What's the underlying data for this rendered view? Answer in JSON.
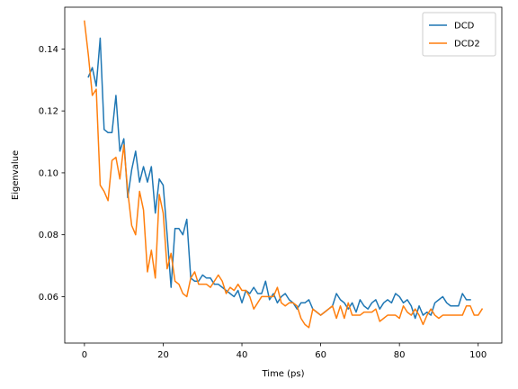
{
  "chart_data": {
    "type": "line",
    "title": "",
    "xlabel": "Time (ps)",
    "ylabel": "Eigenvalue",
    "xlim": [
      -5,
      106
    ],
    "ylim": [
      0.045,
      0.1535
    ],
    "xticks": [
      0,
      20,
      40,
      60,
      80,
      100
    ],
    "yticks": [
      0.06,
      0.08,
      0.1,
      0.12,
      0.14
    ],
    "xtick_labels": [
      "0",
      "20",
      "40",
      "60",
      "80",
      "100"
    ],
    "ytick_labels": [
      "0.06",
      "0.08",
      "0.10",
      "0.12",
      "0.14"
    ],
    "grid": false,
    "legend_position": "top-right",
    "series": [
      {
        "name": "DCD",
        "color": "#1f77b4",
        "x": [
          1,
          2,
          3,
          4,
          5,
          6,
          7,
          8,
          9,
          10,
          11,
          12,
          13,
          14,
          15,
          16,
          17,
          18,
          19,
          20,
          21,
          22,
          23,
          24,
          25,
          26,
          27,
          28,
          29,
          30,
          31,
          32,
          33,
          34,
          35,
          36,
          37,
          38,
          39,
          40,
          41,
          42,
          43,
          44,
          45,
          46,
          47,
          48,
          49,
          50,
          51,
          52,
          53,
          54,
          55,
          56,
          57,
          58,
          59,
          60,
          61,
          62,
          63,
          64,
          65,
          66,
          67,
          68,
          69,
          70,
          71,
          72,
          73,
          74,
          75,
          76,
          77,
          78,
          79,
          80,
          81,
          82,
          83,
          84,
          85,
          86,
          87,
          88,
          89,
          90,
          91,
          92,
          93,
          94,
          95,
          96,
          97,
          98
        ],
        "y": [
          0.131,
          0.134,
          0.128,
          0.1435,
          0.114,
          0.113,
          0.113,
          0.125,
          0.107,
          0.111,
          0.092,
          0.101,
          0.107,
          0.097,
          0.102,
          0.097,
          0.102,
          0.087,
          0.098,
          0.096,
          0.08,
          0.063,
          0.082,
          0.082,
          0.08,
          0.085,
          0.066,
          0.065,
          0.065,
          0.067,
          0.066,
          0.066,
          0.064,
          0.064,
          0.063,
          0.062,
          0.061,
          0.06,
          0.062,
          0.058,
          0.062,
          0.061,
          0.063,
          0.061,
          0.061,
          0.065,
          0.059,
          0.061,
          0.058,
          0.06,
          0.061,
          0.059,
          0.058,
          0.056,
          0.058,
          0.058,
          0.059,
          0.056,
          0.055,
          0.054,
          0.055,
          0.056,
          0.057,
          0.061,
          0.059,
          0.058,
          0.056,
          0.058,
          0.055,
          0.059,
          0.057,
          0.056,
          0.058,
          0.059,
          0.056,
          0.058,
          0.059,
          0.058,
          0.061,
          0.06,
          0.058,
          0.059,
          0.057,
          0.053,
          0.057,
          0.054,
          0.055,
          0.054,
          0.058,
          0.059,
          0.06,
          0.058,
          0.057,
          0.057,
          0.057,
          0.061,
          0.059,
          0.059
        ]
      },
      {
        "name": "DCD2",
        "color": "#ff7f0e",
        "x": [
          0,
          1,
          2,
          3,
          4,
          5,
          6,
          7,
          8,
          9,
          10,
          11,
          12,
          13,
          14,
          15,
          16,
          17,
          18,
          19,
          20,
          21,
          22,
          23,
          24,
          25,
          26,
          27,
          28,
          29,
          30,
          31,
          32,
          33,
          34,
          35,
          36,
          37,
          38,
          39,
          40,
          41,
          42,
          43,
          44,
          45,
          46,
          47,
          48,
          49,
          50,
          51,
          52,
          53,
          54,
          55,
          56,
          57,
          58,
          59,
          60,
          61,
          62,
          63,
          64,
          65,
          66,
          67,
          68,
          69,
          70,
          71,
          72,
          73,
          74,
          75,
          76,
          77,
          78,
          79,
          80,
          81,
          82,
          83,
          84,
          85,
          86,
          87,
          88,
          89,
          90,
          91,
          92,
          93,
          94,
          95,
          96,
          97,
          98,
          99,
          100,
          101
        ],
        "y": [
          0.149,
          0.138,
          0.125,
          0.127,
          0.096,
          0.094,
          0.091,
          0.104,
          0.105,
          0.098,
          0.109,
          0.094,
          0.083,
          0.08,
          0.094,
          0.088,
          0.068,
          0.075,
          0.066,
          0.093,
          0.087,
          0.069,
          0.074,
          0.065,
          0.064,
          0.061,
          0.06,
          0.066,
          0.068,
          0.064,
          0.064,
          0.064,
          0.063,
          0.065,
          0.067,
          0.065,
          0.061,
          0.063,
          0.062,
          0.064,
          0.062,
          0.062,
          0.06,
          0.056,
          0.058,
          0.06,
          0.06,
          0.06,
          0.06,
          0.063,
          0.058,
          0.057,
          0.058,
          0.058,
          0.057,
          0.053,
          0.051,
          0.05,
          0.056,
          0.055,
          0.054,
          0.055,
          0.056,
          0.057,
          0.053,
          0.057,
          0.053,
          0.058,
          0.054,
          0.054,
          0.054,
          0.055,
          0.055,
          0.055,
          0.056,
          0.052,
          0.053,
          0.054,
          0.054,
          0.054,
          0.053,
          0.057,
          0.055,
          0.054,
          0.056,
          0.054,
          0.051,
          0.054,
          0.056,
          0.054,
          0.053,
          0.054,
          0.054,
          0.054,
          0.054,
          0.054,
          0.054,
          0.057,
          0.057,
          0.054,
          0.054,
          0.056
        ]
      }
    ]
  }
}
